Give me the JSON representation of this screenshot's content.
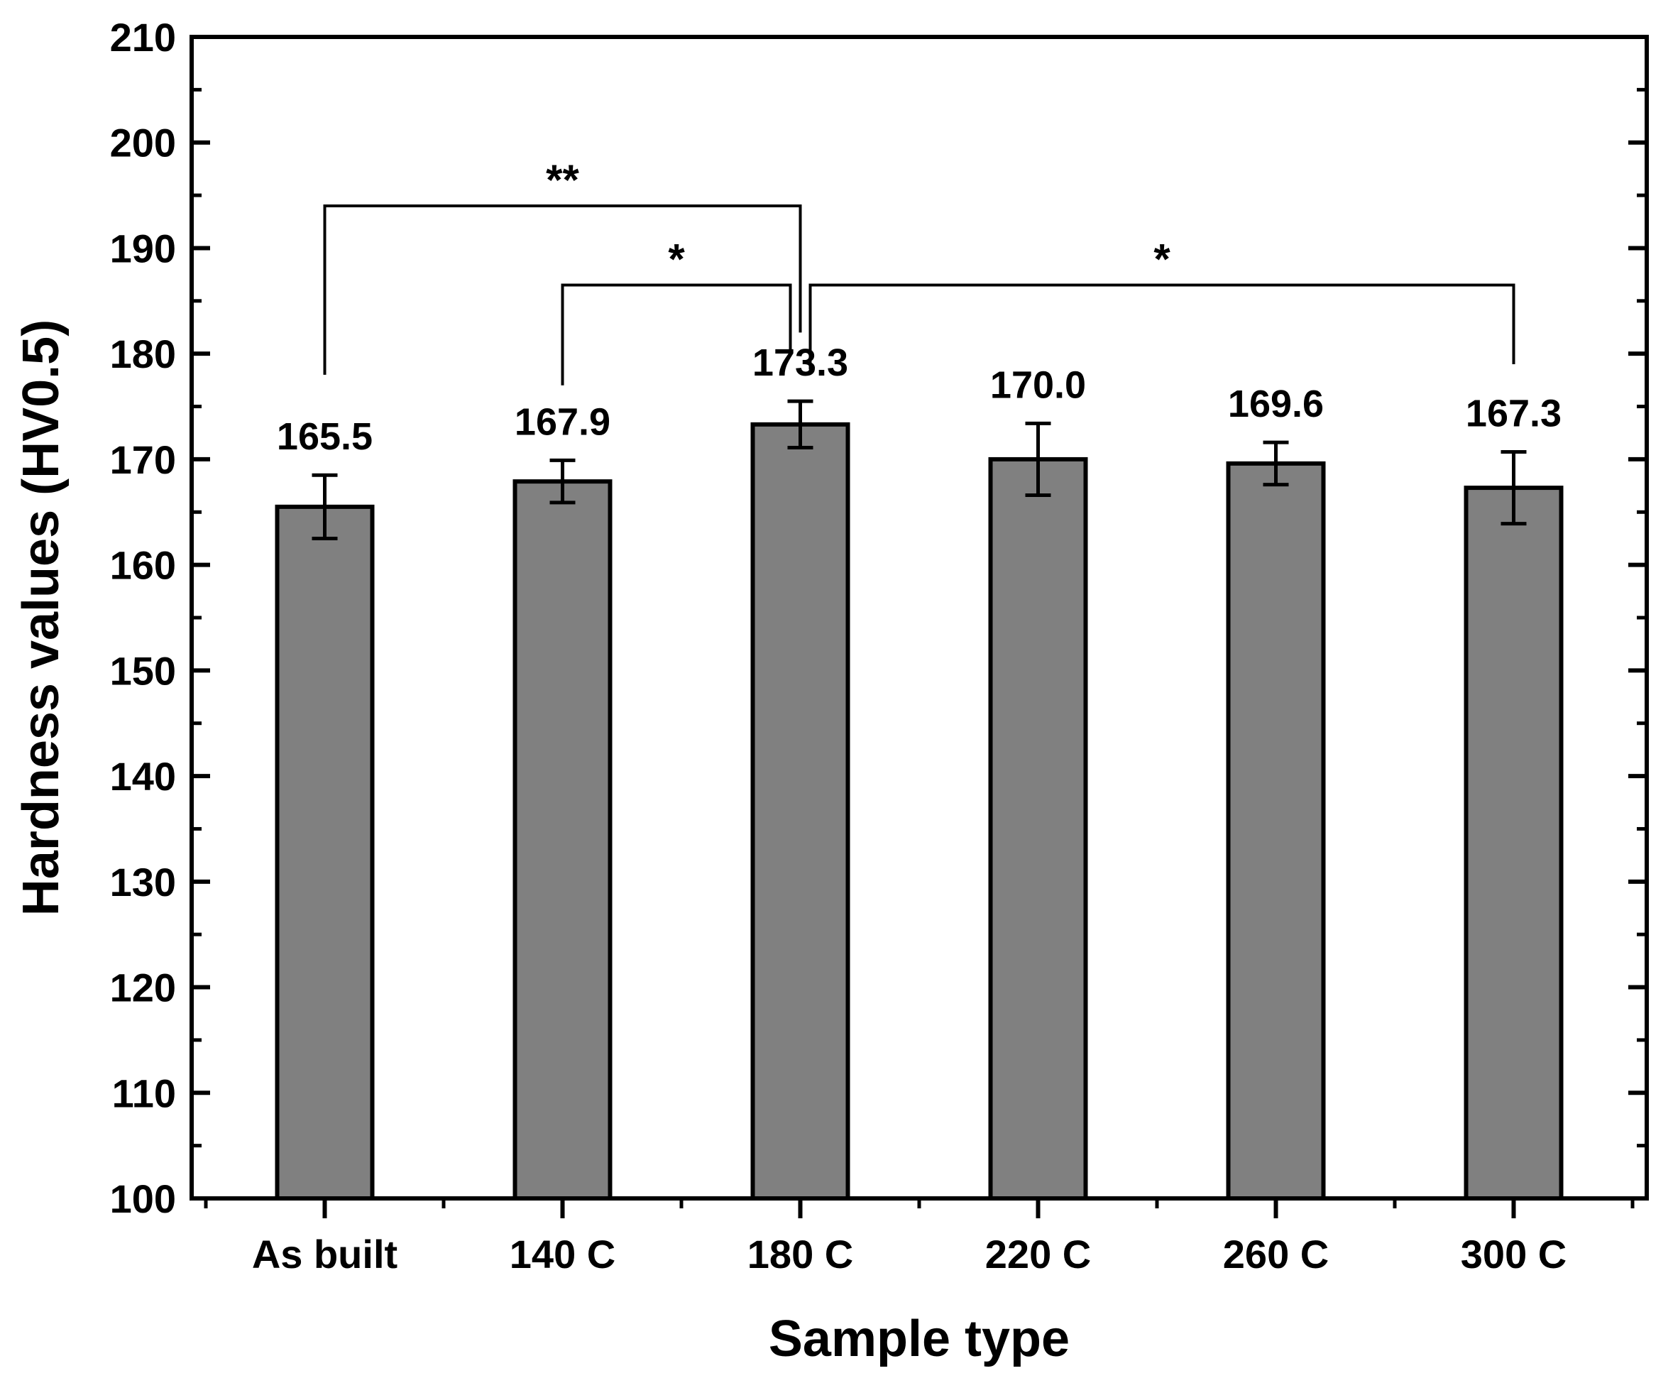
{
  "chart_data": {
    "type": "bar",
    "title": "",
    "xlabel": "Sample type",
    "ylabel": "Hardness values (HV0.5)",
    "categories": [
      "As built",
      "140 C",
      "180 C",
      "220 C",
      "260 C",
      "300 C"
    ],
    "values": [
      165.5,
      167.9,
      173.3,
      170.0,
      169.6,
      167.3
    ],
    "errors": [
      3.0,
      2.0,
      2.2,
      3.4,
      2.0,
      3.4
    ],
    "value_labels": [
      "165.5",
      "167.9",
      "173.3",
      "170.0",
      "169.6",
      "167.3"
    ],
    "ylim": [
      100,
      210
    ],
    "yticks": [
      100,
      110,
      120,
      130,
      140,
      150,
      160,
      170,
      180,
      190,
      200,
      210
    ],
    "ytick_labels": [
      "100",
      "110",
      "120",
      "130",
      "140",
      "150",
      "160",
      "170",
      "180",
      "190",
      "200",
      "210"
    ],
    "bar_color": "#808080",
    "grid": false,
    "legend": "none",
    "significance": [
      {
        "from": 0,
        "to": 2,
        "level": 194,
        "label": "**"
      },
      {
        "from": 1,
        "to": 2,
        "level": 186.5,
        "label": "*"
      },
      {
        "from": 2,
        "to": 5,
        "level": 186.5,
        "label": "*"
      }
    ]
  }
}
